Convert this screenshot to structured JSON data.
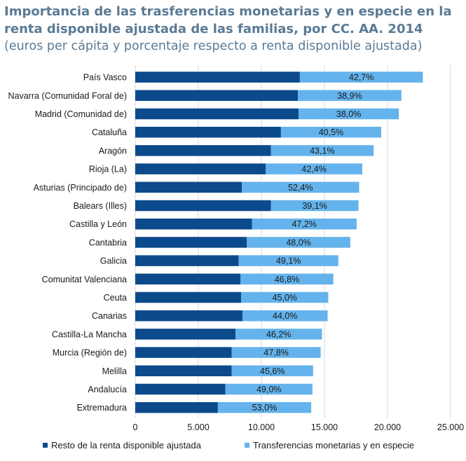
{
  "title": {
    "line1": "Importancia de las trasferencias monetarias y en especie en la",
    "line2": "renta disponible ajustada de las familias, por CC. AA. 2014",
    "subtitle": "(euros per cápita y porcentaje respecto a renta disponible ajustada)"
  },
  "colors": {
    "resto": "#0c4a8c",
    "transferencias": "#64b3ec",
    "grid": "#d9d9d9"
  },
  "chart_data": {
    "type": "bar",
    "orientation": "horizontal",
    "stacked": true,
    "categories": [
      "País Vasco",
      "Navarra (Comunidad Foral de)",
      "Madrid (Comunidad de)",
      "Cataluña",
      "Aragón",
      "Rioja (La)",
      "Asturias (Principado de)",
      "Balears (Illes)",
      "Castilla y León",
      "Cantabria",
      "Galicia",
      "Comunitat Valenciana",
      "Ceuta",
      "Canarias",
      "Castilla-La Mancha",
      "Murcia (Región de)",
      "Melilla",
      "Andalucía",
      "Extremadura"
    ],
    "series": [
      {
        "name": "Resto de la renta disponible ajustada",
        "values": [
          13050,
          12900,
          12950,
          11550,
          10750,
          10350,
          8450,
          10750,
          9250,
          8850,
          8200,
          8350,
          8400,
          8500,
          7950,
          7650,
          7650,
          7150,
          6550
        ]
      },
      {
        "name": "Transferencias monetarias y en especie",
        "values": [
          9750,
          8200,
          7950,
          7950,
          8150,
          7650,
          9300,
          6950,
          8300,
          8200,
          7900,
          7350,
          6900,
          6750,
          6850,
          7050,
          6450,
          6900,
          7400
        ]
      }
    ],
    "data_labels": [
      "42,7%",
      "38,9%",
      "38,0%",
      "40,5%",
      "43,1%",
      "42,4%",
      "52,4%",
      "39,1%",
      "47,2%",
      "48,0%",
      "49,1%",
      "46,8%",
      "45,0%",
      "44,0%",
      "46,2%",
      "47,8%",
      "45,6%",
      "49,0%",
      "53,0%"
    ],
    "xlim": [
      0,
      25000
    ],
    "xticks": [
      0,
      5000,
      10000,
      15000,
      20000,
      25000
    ],
    "xtick_labels": [
      "0",
      "5.000",
      "10.000",
      "15.000",
      "20.000",
      "25.000"
    ],
    "grid": true,
    "legend_position": "bottom"
  }
}
